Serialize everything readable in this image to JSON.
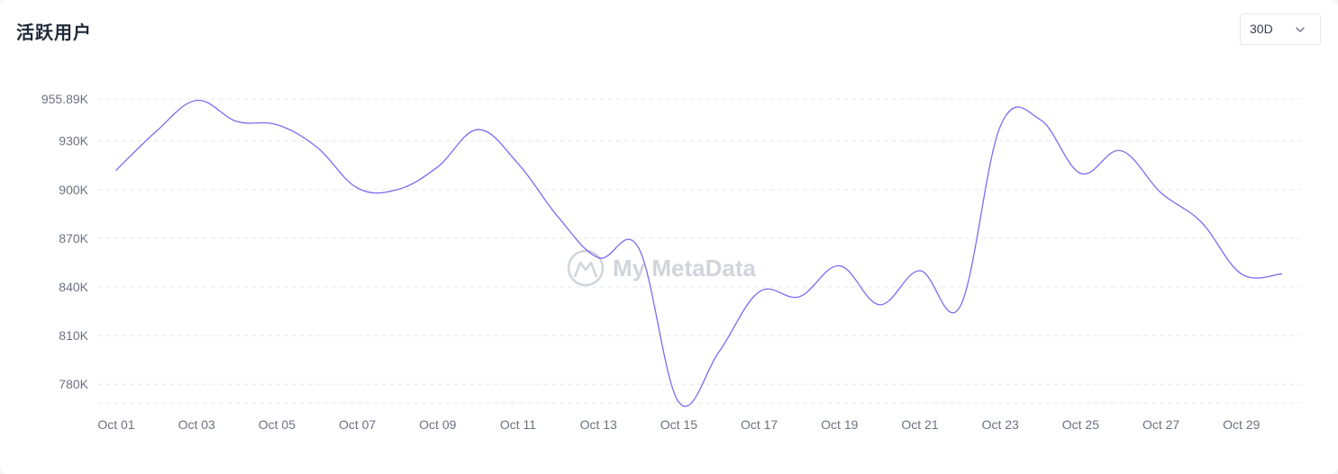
{
  "header": {
    "title": "活跃用户",
    "range_value": "30D"
  },
  "icons": {
    "dropdown": "chevron-down-icon",
    "watermark": "mymetadata-logo"
  },
  "watermark": {
    "text": "My MetaData"
  },
  "colors": {
    "line": "#7c6cf0",
    "grid": "#e5e7eb",
    "tick_text": "#6b7280"
  },
  "chart_data": {
    "type": "line",
    "title": "活跃用户",
    "xlabel": "",
    "ylabel": "",
    "ylim": [
      768000,
      955890
    ],
    "y_ticks": [
      955890,
      930000,
      900000,
      870000,
      840000,
      810000,
      780000
    ],
    "y_tick_labels": [
      "955.89K",
      "930K",
      "900K",
      "870K",
      "840K",
      "810K",
      "780K"
    ],
    "x_ticks": [
      "Oct 01",
      "Oct 03",
      "Oct 05",
      "Oct 07",
      "Oct 09",
      "Oct 11",
      "Oct 13",
      "Oct 15",
      "Oct 17",
      "Oct 19",
      "Oct 21",
      "Oct 23",
      "Oct 25",
      "Oct 27",
      "Oct 29"
    ],
    "grid": "horizontal dashed",
    "series": [
      {
        "points": [
          {
            "x": "Oct 01",
            "y": 912000
          },
          {
            "x": "Oct 02",
            "y": 936000
          },
          {
            "x": "Oct 03",
            "y": 955000
          },
          {
            "x": "Oct 04",
            "y": 942000
          },
          {
            "x": "Oct 05",
            "y": 940000
          },
          {
            "x": "Oct 06",
            "y": 926000
          },
          {
            "x": "Oct 07",
            "y": 901000
          },
          {
            "x": "Oct 08",
            "y": 900000
          },
          {
            "x": "Oct 09",
            "y": 914000
          },
          {
            "x": "Oct 10",
            "y": 937000
          },
          {
            "x": "Oct 11",
            "y": 916000
          },
          {
            "x": "Oct 12",
            "y": 883000
          },
          {
            "x": "Oct 13",
            "y": 858000
          },
          {
            "x": "Oct 14",
            "y": 864000
          },
          {
            "x": "Oct 15",
            "y": 769000
          },
          {
            "x": "Oct 16",
            "y": 800000
          },
          {
            "x": "Oct 17",
            "y": 837000
          },
          {
            "x": "Oct 18",
            "y": 834000
          },
          {
            "x": "Oct 19",
            "y": 853000
          },
          {
            "x": "Oct 20",
            "y": 829000
          },
          {
            "x": "Oct 21",
            "y": 850000
          },
          {
            "x": "Oct 22",
            "y": 828000
          },
          {
            "x": "Oct 23",
            "y": 939000
          },
          {
            "x": "Oct 24",
            "y": 943000
          },
          {
            "x": "Oct 25",
            "y": 910000
          },
          {
            "x": "Oct 26",
            "y": 924000
          },
          {
            "x": "Oct 27",
            "y": 898000
          },
          {
            "x": "Oct 28",
            "y": 880000
          },
          {
            "x": "Oct 29",
            "y": 848000
          },
          {
            "x": "Oct 30",
            "y": 848000
          }
        ]
      }
    ]
  }
}
